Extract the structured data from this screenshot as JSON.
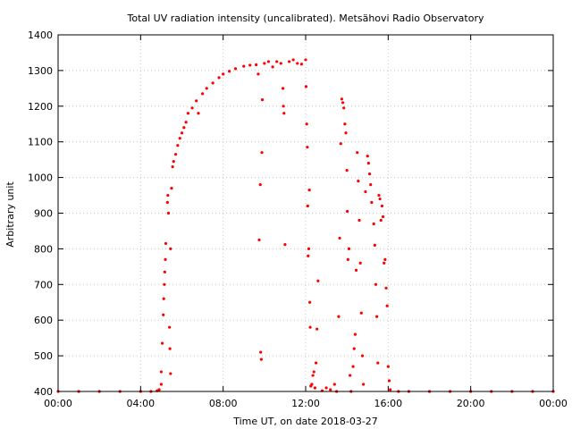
{
  "chart_data": {
    "type": "scatter",
    "title": "Total UV radiation intensity (uncalibrated). Metsähovi Radio Observatory",
    "xlabel": "Time UT, on date 2018-03-27",
    "ylabel": "Arbitrary unit",
    "xlim_hours": [
      0,
      24
    ],
    "ylim": [
      400,
      1400
    ],
    "x_ticks": [
      {
        "value": 0,
        "label": "00:00"
      },
      {
        "value": 4,
        "label": "04:00"
      },
      {
        "value": 8,
        "label": "08:00"
      },
      {
        "value": 12,
        "label": "12:00"
      },
      {
        "value": 16,
        "label": "16:00"
      },
      {
        "value": 20,
        "label": "20:00"
      },
      {
        "value": 24,
        "label": "00:00"
      }
    ],
    "y_ticks": [
      400,
      500,
      600,
      700,
      800,
      900,
      1000,
      1100,
      1200,
      1300,
      1400
    ],
    "grid": true,
    "point_color": "#ff0000",
    "series": [
      {
        "points": [
          [
            0.0,
            400
          ],
          [
            1.0,
            400
          ],
          [
            2.0,
            400
          ],
          [
            3.0,
            400
          ],
          [
            4.0,
            400
          ],
          [
            4.5,
            400
          ],
          [
            4.8,
            402
          ],
          [
            4.9,
            405
          ],
          [
            5.0,
            420
          ],
          [
            5.0,
            455
          ],
          [
            5.05,
            535
          ],
          [
            5.1,
            615
          ],
          [
            5.12,
            660
          ],
          [
            5.15,
            700
          ],
          [
            5.17,
            735
          ],
          [
            5.2,
            770
          ],
          [
            5.22,
            815
          ],
          [
            5.3,
            930
          ],
          [
            5.32,
            950
          ],
          [
            5.35,
            900
          ],
          [
            5.4,
            580
          ],
          [
            5.42,
            520
          ],
          [
            5.45,
            450
          ],
          [
            5.45,
            800
          ],
          [
            5.5,
            970
          ],
          [
            5.55,
            1030
          ],
          [
            5.6,
            1045
          ],
          [
            5.7,
            1065
          ],
          [
            5.8,
            1090
          ],
          [
            5.9,
            1110
          ],
          [
            6.0,
            1125
          ],
          [
            6.1,
            1140
          ],
          [
            6.2,
            1155
          ],
          [
            6.3,
            1180
          ],
          [
            6.5,
            1195
          ],
          [
            6.7,
            1215
          ],
          [
            6.8,
            1180
          ],
          [
            7.0,
            1235
          ],
          [
            7.2,
            1250
          ],
          [
            7.5,
            1265
          ],
          [
            7.8,
            1280
          ],
          [
            8.0,
            1290
          ],
          [
            8.3,
            1298
          ],
          [
            8.6,
            1305
          ],
          [
            9.0,
            1312
          ],
          [
            9.3,
            1315
          ],
          [
            9.6,
            1316
          ],
          [
            9.7,
            1290
          ],
          [
            9.75,
            825
          ],
          [
            9.8,
            980
          ],
          [
            9.82,
            510
          ],
          [
            9.85,
            490
          ],
          [
            9.88,
            1070
          ],
          [
            9.9,
            1218
          ],
          [
            10.0,
            1320
          ],
          [
            10.2,
            1325
          ],
          [
            10.4,
            1310
          ],
          [
            10.6,
            1325
          ],
          [
            10.8,
            1320
          ],
          [
            10.9,
            1250
          ],
          [
            10.92,
            1200
          ],
          [
            10.95,
            1180
          ],
          [
            11.0,
            812
          ],
          [
            11.2,
            1325
          ],
          [
            11.4,
            1330
          ],
          [
            11.6,
            1320
          ],
          [
            11.8,
            1318
          ],
          [
            12.0,
            1330
          ],
          [
            12.02,
            1255
          ],
          [
            12.05,
            1150
          ],
          [
            12.08,
            1085
          ],
          [
            12.1,
            920
          ],
          [
            12.12,
            780
          ],
          [
            12.15,
            800
          ],
          [
            12.18,
            965
          ],
          [
            12.2,
            650
          ],
          [
            12.22,
            580
          ],
          [
            12.25,
            415
          ],
          [
            12.3,
            420
          ],
          [
            12.35,
            445
          ],
          [
            12.4,
            455
          ],
          [
            12.45,
            410
          ],
          [
            12.5,
            480
          ],
          [
            12.55,
            575
          ],
          [
            12.6,
            710
          ],
          [
            12.8,
            402
          ],
          [
            13.0,
            410
          ],
          [
            13.2,
            405
          ],
          [
            13.4,
            420
          ],
          [
            13.5,
            400
          ],
          [
            13.6,
            610
          ],
          [
            13.65,
            830
          ],
          [
            13.7,
            1095
          ],
          [
            13.75,
            1220
          ],
          [
            13.8,
            1210
          ],
          [
            13.85,
            1195
          ],
          [
            13.9,
            1150
          ],
          [
            13.95,
            1125
          ],
          [
            14.0,
            1020
          ],
          [
            14.02,
            905
          ],
          [
            14.05,
            770
          ],
          [
            14.1,
            800
          ],
          [
            14.15,
            445
          ],
          [
            14.2,
            400
          ],
          [
            14.3,
            470
          ],
          [
            14.35,
            520
          ],
          [
            14.4,
            560
          ],
          [
            14.45,
            740
          ],
          [
            14.5,
            1070
          ],
          [
            14.55,
            990
          ],
          [
            14.6,
            880
          ],
          [
            14.65,
            760
          ],
          [
            14.7,
            620
          ],
          [
            14.75,
            500
          ],
          [
            14.8,
            420
          ],
          [
            14.9,
            960
          ],
          [
            15.0,
            1060
          ],
          [
            15.05,
            1040
          ],
          [
            15.1,
            1010
          ],
          [
            15.15,
            980
          ],
          [
            15.2,
            930
          ],
          [
            15.3,
            870
          ],
          [
            15.35,
            810
          ],
          [
            15.4,
            700
          ],
          [
            15.45,
            610
          ],
          [
            15.5,
            480
          ],
          [
            15.55,
            950
          ],
          [
            15.6,
            940
          ],
          [
            15.65,
            880
          ],
          [
            15.7,
            920
          ],
          [
            15.75,
            890
          ],
          [
            15.8,
            760
          ],
          [
            15.85,
            770
          ],
          [
            15.9,
            690
          ],
          [
            15.95,
            640
          ],
          [
            16.0,
            470
          ],
          [
            16.05,
            430
          ],
          [
            16.1,
            405
          ],
          [
            16.5,
            400
          ],
          [
            17.0,
            400
          ],
          [
            18.0,
            400
          ],
          [
            19.0,
            400
          ],
          [
            20.0,
            400
          ],
          [
            21.0,
            400
          ],
          [
            22.0,
            400
          ],
          [
            23.0,
            400
          ],
          [
            24.0,
            400
          ]
        ]
      }
    ]
  }
}
